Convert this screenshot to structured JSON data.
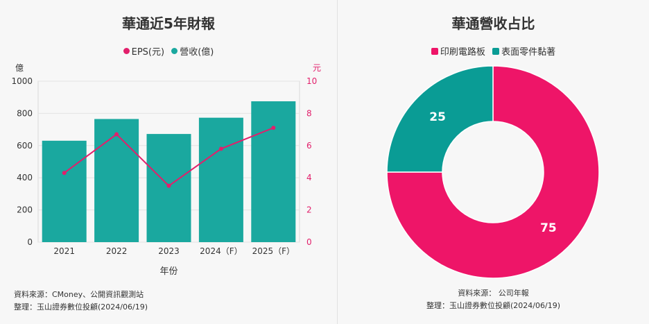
{
  "left": {
    "title": "華通近5年財報",
    "y_left_unit": "億",
    "y_right_unit": "元",
    "source_line1": "資料來源：CMoney、公開資訊觀測站",
    "source_line2": "整理：玉山證券數位投顧(2024/06/19)"
  },
  "right": {
    "title": "華通營收占比",
    "source_line1": "資料來源： 公司年報",
    "source_line2": "整理：玉山證券數位投顧(2024/06/19)"
  },
  "colors": {
    "bar": "#1aa89f",
    "line": "#e21f6b",
    "pie_a": "#ee1568",
    "pie_b": "#0a9c95"
  },
  "chart_data": [
    {
      "type": "bar",
      "title": "華通近5年財報",
      "categories": [
        "2021",
        "2022",
        "2023",
        "2024（F）",
        "2025（F）"
      ],
      "xlabel": "年份",
      "ylabel": "億",
      "y2label": "元",
      "ylim": [
        0,
        1000
      ],
      "y2lim": [
        0,
        10
      ],
      "yticks": [
        0,
        200,
        400,
        600,
        800,
        1000
      ],
      "y2ticks": [
        0,
        2,
        4,
        6,
        8,
        10
      ],
      "legend_position": "top",
      "series": [
        {
          "name": "營收(億)",
          "kind": "bar",
          "axis": "left",
          "values": [
            630,
            765,
            672,
            773,
            875
          ]
        },
        {
          "name": "EPS(元)",
          "kind": "line",
          "axis": "right",
          "values": [
            4.3,
            6.7,
            3.5,
            5.8,
            7.1
          ]
        }
      ],
      "legend": [
        "EPS(元)",
        "營收(億)"
      ]
    },
    {
      "type": "pie",
      "title": "華通營收占比",
      "donut": true,
      "legend_position": "top",
      "categories": [
        "印刷電路板",
        "表面零件黏著"
      ],
      "values": [
        75,
        25
      ]
    }
  ]
}
